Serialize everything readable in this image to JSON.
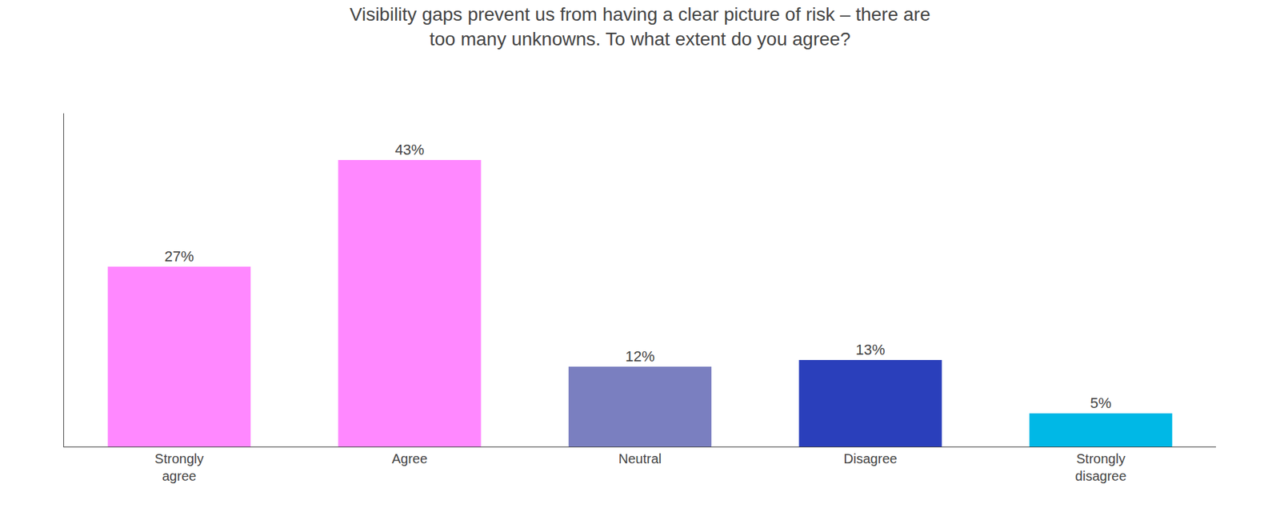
{
  "chart_data": {
    "type": "bar",
    "title": "Visibility gaps prevent us from having a clear picture of risk – there are\ntoo many unknowns. To what extent do you agree?",
    "categories": [
      "Strongly\nagree",
      "Agree",
      "Neutral",
      "Disagree",
      "Strongly\ndisagree"
    ],
    "values": [
      27,
      43,
      12,
      13,
      5
    ],
    "value_labels": [
      "27%",
      "43%",
      "12%",
      "13%",
      "5%"
    ],
    "data_labels": true,
    "colors": [
      "#ff88ff",
      "#ff88ff",
      "#7a7fc0",
      "#2a3fbb",
      "#00b8e6"
    ],
    "ylim": [
      0,
      50
    ],
    "tick_labels": "x",
    "grid": false
  }
}
